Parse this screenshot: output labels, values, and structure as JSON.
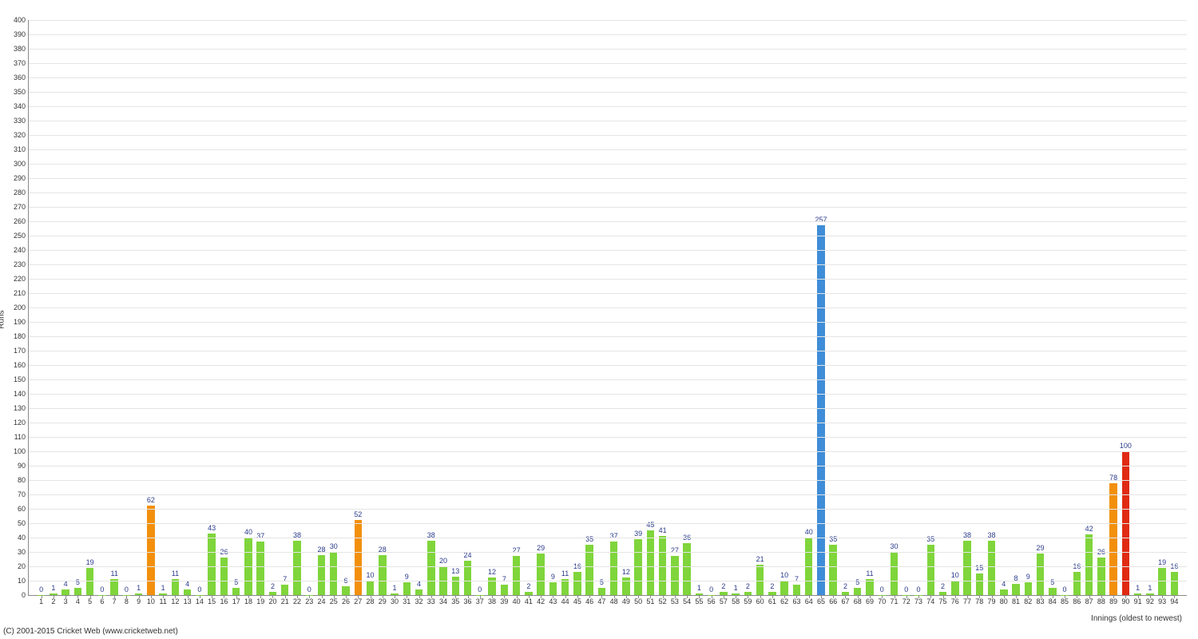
{
  "chart": {
    "type": "bar",
    "ylabel": "Runs",
    "xlabel": "Innings (oldest to newest)",
    "ylim": [
      0,
      400
    ],
    "ytick_step": 10,
    "background_color": "#ffffff",
    "grid_color": "#e5e5e5",
    "axis_color": "#888888",
    "label_color": "#2a3a8a",
    "tick_fontsize": 9,
    "label_fontsize": 9,
    "axis_title_fontsize": 10,
    "bar_width_ratio": 0.62,
    "colors": {
      "green": "#7fd53b",
      "orange": "#f2900d",
      "blue": "#3f8dd8",
      "red": "#e02a13"
    },
    "bars": [
      {
        "x": 1,
        "v": 0,
        "c": "green"
      },
      {
        "x": 2,
        "v": 1,
        "c": "green"
      },
      {
        "x": 3,
        "v": 4,
        "c": "green"
      },
      {
        "x": 4,
        "v": 5,
        "c": "green"
      },
      {
        "x": 5,
        "v": 19,
        "c": "green"
      },
      {
        "x": 6,
        "v": 0,
        "c": "green"
      },
      {
        "x": 7,
        "v": 11,
        "c": "green"
      },
      {
        "x": 8,
        "v": 0,
        "c": "green"
      },
      {
        "x": 9,
        "v": 1,
        "c": "green"
      },
      {
        "x": 10,
        "v": 62,
        "c": "orange"
      },
      {
        "x": 11,
        "v": 1,
        "c": "green"
      },
      {
        "x": 12,
        "v": 11,
        "c": "green"
      },
      {
        "x": 13,
        "v": 4,
        "c": "green"
      },
      {
        "x": 14,
        "v": 0,
        "c": "green"
      },
      {
        "x": 15,
        "v": 43,
        "c": "green"
      },
      {
        "x": 16,
        "v": 26,
        "c": "green"
      },
      {
        "x": 17,
        "v": 5,
        "c": "green"
      },
      {
        "x": 18,
        "v": 40,
        "c": "green"
      },
      {
        "x": 19,
        "v": 37,
        "c": "green"
      },
      {
        "x": 20,
        "v": 2,
        "c": "green"
      },
      {
        "x": 21,
        "v": 7,
        "c": "green"
      },
      {
        "x": 22,
        "v": 38,
        "c": "green"
      },
      {
        "x": 23,
        "v": 0,
        "c": "green"
      },
      {
        "x": 24,
        "v": 28,
        "c": "green"
      },
      {
        "x": 25,
        "v": 30,
        "c": "green"
      },
      {
        "x": 26,
        "v": 6,
        "c": "green"
      },
      {
        "x": 27,
        "v": 52,
        "c": "orange"
      },
      {
        "x": 28,
        "v": 10,
        "c": "green"
      },
      {
        "x": 29,
        "v": 28,
        "c": "green"
      },
      {
        "x": 30,
        "v": 1,
        "c": "green"
      },
      {
        "x": 31,
        "v": 9,
        "c": "green"
      },
      {
        "x": 32,
        "v": 4,
        "c": "green"
      },
      {
        "x": 33,
        "v": 38,
        "c": "green"
      },
      {
        "x": 34,
        "v": 20,
        "c": "green"
      },
      {
        "x": 35,
        "v": 13,
        "c": "green"
      },
      {
        "x": 36,
        "v": 24,
        "c": "green"
      },
      {
        "x": 37,
        "v": 0,
        "c": "green"
      },
      {
        "x": 38,
        "v": 12,
        "c": "green"
      },
      {
        "x": 39,
        "v": 7,
        "c": "green"
      },
      {
        "x": 40,
        "v": 27,
        "c": "green"
      },
      {
        "x": 41,
        "v": 2,
        "c": "green"
      },
      {
        "x": 42,
        "v": 29,
        "c": "green"
      },
      {
        "x": 43,
        "v": 9,
        "c": "green"
      },
      {
        "x": 44,
        "v": 11,
        "c": "green"
      },
      {
        "x": 45,
        "v": 16,
        "c": "green"
      },
      {
        "x": 46,
        "v": 35,
        "c": "green"
      },
      {
        "x": 47,
        "v": 5,
        "c": "green"
      },
      {
        "x": 48,
        "v": 37,
        "c": "green"
      },
      {
        "x": 49,
        "v": 12,
        "c": "green"
      },
      {
        "x": 50,
        "v": 39,
        "c": "green"
      },
      {
        "x": 51,
        "v": 45,
        "c": "green"
      },
      {
        "x": 52,
        "v": 41,
        "c": "green"
      },
      {
        "x": 53,
        "v": 27,
        "c": "green"
      },
      {
        "x": 54,
        "v": 36,
        "c": "green"
      },
      {
        "x": 55,
        "v": 1,
        "c": "green"
      },
      {
        "x": 56,
        "v": 0,
        "c": "green"
      },
      {
        "x": 57,
        "v": 2,
        "c": "green"
      },
      {
        "x": 58,
        "v": 1,
        "c": "green"
      },
      {
        "x": 59,
        "v": 2,
        "c": "green"
      },
      {
        "x": 60,
        "v": 21,
        "c": "green"
      },
      {
        "x": 61,
        "v": 2,
        "c": "green"
      },
      {
        "x": 62,
        "v": 10,
        "c": "green"
      },
      {
        "x": 63,
        "v": 7,
        "c": "green"
      },
      {
        "x": 64,
        "v": 40,
        "c": "green"
      },
      {
        "x": 65,
        "v": 257,
        "c": "blue"
      },
      {
        "x": 66,
        "v": 35,
        "c": "green"
      },
      {
        "x": 67,
        "v": 2,
        "c": "green"
      },
      {
        "x": 68,
        "v": 5,
        "c": "green"
      },
      {
        "x": 69,
        "v": 11,
        "c": "green"
      },
      {
        "x": 70,
        "v": 0,
        "c": "green"
      },
      {
        "x": 71,
        "v": 30,
        "c": "green"
      },
      {
        "x": 72,
        "v": 0,
        "c": "green"
      },
      {
        "x": 73,
        "v": 0,
        "c": "green"
      },
      {
        "x": 74,
        "v": 35,
        "c": "green"
      },
      {
        "x": 75,
        "v": 2,
        "c": "green"
      },
      {
        "x": 76,
        "v": 10,
        "c": "green"
      },
      {
        "x": 77,
        "v": 38,
        "c": "green"
      },
      {
        "x": 78,
        "v": 15,
        "c": "green"
      },
      {
        "x": 79,
        "v": 38,
        "c": "green"
      },
      {
        "x": 80,
        "v": 4,
        "c": "green"
      },
      {
        "x": 81,
        "v": 8,
        "c": "green"
      },
      {
        "x": 82,
        "v": 9,
        "c": "green"
      },
      {
        "x": 83,
        "v": 29,
        "c": "green"
      },
      {
        "x": 84,
        "v": 5,
        "c": "green"
      },
      {
        "x": 85,
        "v": 0,
        "c": "green"
      },
      {
        "x": 86,
        "v": 16,
        "c": "green"
      },
      {
        "x": 87,
        "v": 42,
        "c": "green"
      },
      {
        "x": 88,
        "v": 26,
        "c": "green"
      },
      {
        "x": 89,
        "v": 78,
        "c": "orange"
      },
      {
        "x": 90,
        "v": 100,
        "c": "red"
      },
      {
        "x": 91,
        "v": 1,
        "c": "green"
      },
      {
        "x": 92,
        "v": 1,
        "c": "green"
      },
      {
        "x": 93,
        "v": 19,
        "c": "green"
      },
      {
        "x": 94,
        "v": 16,
        "c": "green"
      }
    ]
  },
  "copyright": "(C) 2001-2015 Cricket Web (www.cricketweb.net)"
}
